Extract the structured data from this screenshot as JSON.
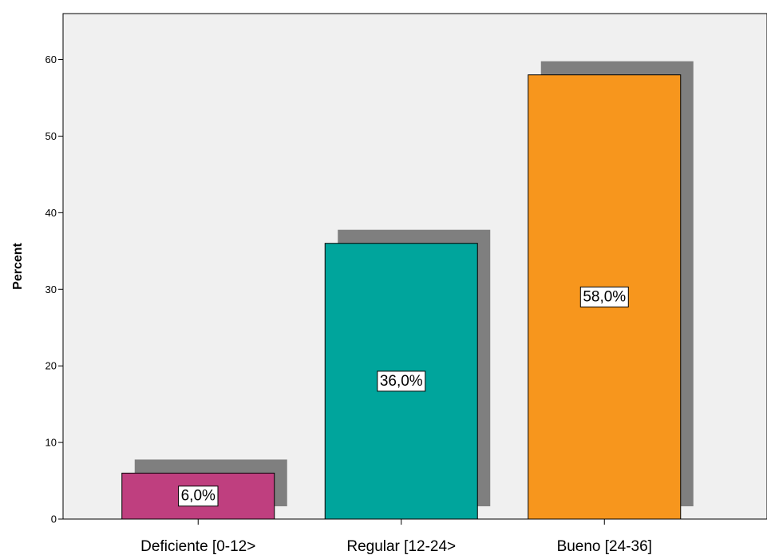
{
  "chart_data": {
    "type": "bar",
    "categories": [
      "Deficiente [0-12>",
      "Regular [12-24>",
      "Bueno [24-36]"
    ],
    "values": [
      6.0,
      36.0,
      58.0
    ],
    "data_labels": [
      "6,0%",
      "36,0%",
      "58,0%"
    ],
    "bar_colors": [
      "#bf3f7f",
      "#00a59c",
      "#f7961d"
    ],
    "shadow_color": "#7f7f7f",
    "plot_background": "#f0f0f0",
    "title": "",
    "xlabel": "",
    "ylabel": "Percent",
    "ylim": [
      0,
      66
    ],
    "yticks": [
      0,
      10,
      20,
      30,
      40,
      50,
      60
    ],
    "grid": false,
    "legend": "none"
  }
}
